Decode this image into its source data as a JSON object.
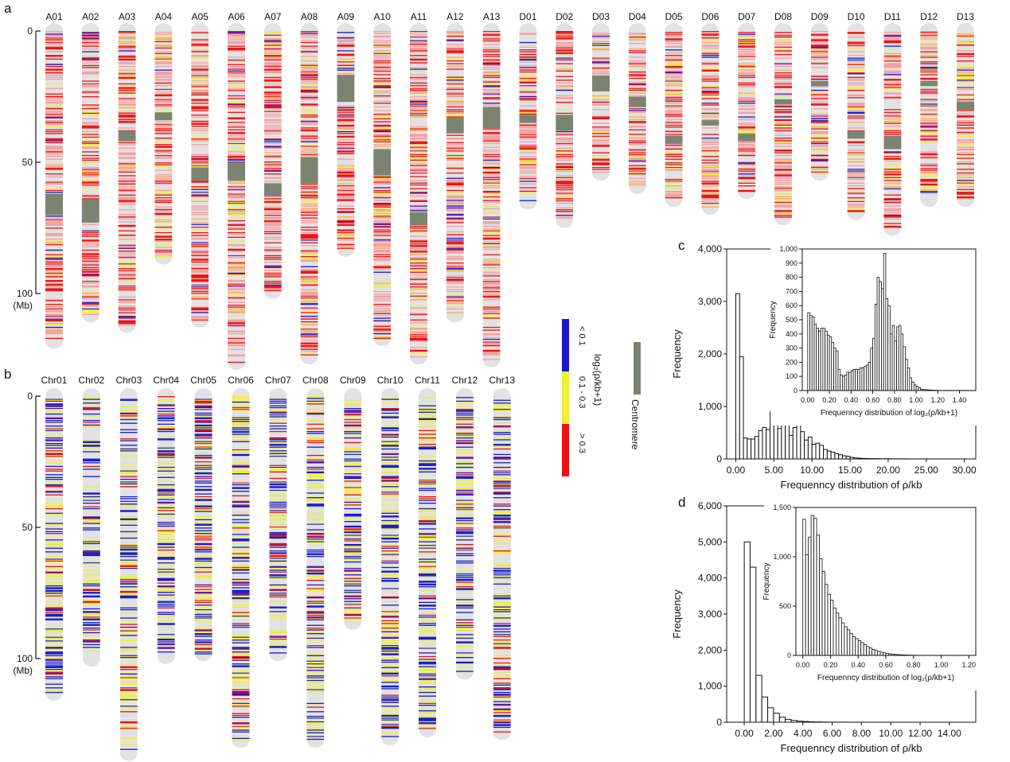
{
  "panel_labels": {
    "a": "a",
    "b": "b",
    "c": "c",
    "d": "d"
  },
  "legend": {
    "title": "log₂(ρ/kb+1)",
    "bins": [
      {
        "label": "< 0.1",
        "color": "#1a1acc"
      },
      {
        "label": "0.1 - 0.3",
        "color": "#eeee3c"
      },
      {
        "label": "> 0.3",
        "color": "#ee1111"
      }
    ],
    "centromere": {
      "label": "Centromere",
      "color": "#7b8470"
    }
  },
  "colors": {
    "chromosome_bg": "#e2e2e2",
    "light_red": "#f4a0a0"
  },
  "chart_data": [
    {
      "id": "panel-a",
      "type": "heatmap",
      "title": "",
      "yaxis": {
        "ticks": [
          0,
          50,
          100
        ],
        "unit_label": "(Mb)"
      },
      "chromosomes": [
        {
          "name": "A01",
          "length": 118,
          "centromere": [
            62,
            70
          ]
        },
        {
          "name": "A02",
          "length": 108,
          "centromere": [
            64,
            73
          ]
        },
        {
          "name": "A03",
          "length": 112,
          "centromere": [
            38,
            42
          ]
        },
        {
          "name": "A04",
          "length": 86,
          "centromere": [
            31,
            34
          ]
        },
        {
          "name": "A05",
          "length": 110,
          "centromere": [
            52,
            57
          ]
        },
        {
          "name": "A06",
          "length": 126,
          "centromere": [
            50,
            57
          ]
        },
        {
          "name": "A07",
          "length": 99,
          "centromere": [
            58,
            63
          ]
        },
        {
          "name": "A08",
          "length": 124,
          "centromere": [
            48,
            58
          ]
        },
        {
          "name": "A09",
          "length": 83,
          "centromere": [
            17,
            27
          ]
        },
        {
          "name": "A10",
          "length": 117,
          "centromere": [
            45,
            55
          ]
        },
        {
          "name": "A11",
          "length": 124,
          "centromere": [
            69,
            74
          ]
        },
        {
          "name": "A12",
          "length": 108,
          "centromere": [
            33,
            39
          ]
        },
        {
          "name": "A13",
          "length": 125,
          "centromere": [
            29,
            37
          ]
        },
        {
          "name": "D01",
          "length": 65,
          "centromere": [
            32,
            35
          ]
        },
        {
          "name": "D02",
          "length": 72,
          "centromere": [
            32,
            38
          ]
        },
        {
          "name": "D03",
          "length": 54,
          "centromere": [
            17,
            23
          ]
        },
        {
          "name": "D04",
          "length": 59,
          "centromere": [
            25,
            29
          ]
        },
        {
          "name": "D05",
          "length": 64,
          "centromere": [
            40,
            43
          ]
        },
        {
          "name": "D06",
          "length": 67,
          "centromere": [
            34,
            36
          ]
        },
        {
          "name": "D07",
          "length": 61,
          "centromere": [
            39,
            42
          ]
        },
        {
          "name": "D08",
          "length": 71,
          "centromere": [
            26,
            28
          ]
        },
        {
          "name": "D09",
          "length": 54,
          "centromere": [
            19,
            21
          ]
        },
        {
          "name": "D10",
          "length": 69,
          "centromere": [
            38,
            41
          ]
        },
        {
          "name": "D11",
          "length": 75,
          "centromere": [
            40,
            45
          ]
        },
        {
          "name": "D12",
          "length": 64,
          "centromere": [
            19,
            21
          ]
        },
        {
          "name": "D13",
          "length": 64,
          "centromere": [
            27,
            30
          ]
        }
      ]
    },
    {
      "id": "panel-b",
      "type": "heatmap",
      "title": "",
      "yaxis": {
        "ticks": [
          0,
          50,
          100
        ],
        "unit_label": "(Mb)"
      },
      "chromosomes": [
        {
          "name": "Chr01",
          "length": 113
        },
        {
          "name": "Chr02",
          "length": 100
        },
        {
          "name": "Chr03",
          "length": 136
        },
        {
          "name": "Chr04",
          "length": 99
        },
        {
          "name": "Chr05",
          "length": 98
        },
        {
          "name": "Chr06",
          "length": 131
        },
        {
          "name": "Chr07",
          "length": 98
        },
        {
          "name": "Chr08",
          "length": 131
        },
        {
          "name": "Chr09",
          "length": 86
        },
        {
          "name": "Chr10",
          "length": 130
        },
        {
          "name": "Chr11",
          "length": 127
        },
        {
          "name": "Chr12",
          "length": 105
        },
        {
          "name": "Chr13",
          "length": 128
        }
      ]
    },
    {
      "id": "panel-c",
      "type": "bar",
      "title": "",
      "xlabel": "Frequenncy distribution of ρ/kb",
      "ylabel": "Frequency",
      "xlim": [
        -1.2,
        31.5
      ],
      "ylim": [
        0,
        4000
      ],
      "xticks": [
        0,
        5,
        10,
        15,
        20,
        25,
        30
      ],
      "xtick_labels": [
        "0.00",
        "5.00",
        "10.00",
        "15.00",
        "20.00",
        "25.00",
        "30.00"
      ],
      "yticks": [
        0,
        1000,
        2000,
        3000,
        4000
      ],
      "ytick_labels": [
        "0",
        "1,000",
        "2,000",
        "3,000",
        "4,000"
      ],
      "bin_start": 0,
      "bin_width": 0.5,
      "values": [
        3150,
        1950,
        400,
        380,
        380,
        430,
        540,
        600,
        560,
        900,
        760,
        580,
        730,
        720,
        450,
        600,
        680,
        520,
        360,
        420,
        280,
        300,
        260,
        180,
        150,
        130,
        100,
        80,
        60,
        50,
        30,
        20,
        15,
        10,
        8,
        6,
        5,
        4,
        3,
        3,
        3,
        2,
        2,
        2,
        2,
        1,
        1,
        1,
        1,
        1,
        1,
        1,
        1,
        1,
        1,
        1,
        1,
        1,
        1,
        1
      ],
      "inset": {
        "xlabel": "Frequenncy distribution of log₂(ρ/kb+1)",
        "ylabel": "Frequency",
        "xlim": [
          -0.05,
          1.55
        ],
        "ylim": [
          0,
          1000
        ],
        "xticks": [
          0,
          0.2,
          0.4,
          0.6,
          0.8,
          1.0,
          1.2,
          1.4
        ],
        "xtick_labels": [
          "0.00",
          "0.20",
          "0.40",
          "0.60",
          "0.80",
          "1.00",
          "1.20",
          "1.40"
        ],
        "yticks": [
          0,
          100,
          200,
          300,
          400,
          500,
          600,
          700,
          800,
          900,
          1000
        ],
        "ytick_labels": [
          "0",
          "100",
          "200",
          "300",
          "400",
          "500",
          "600",
          "700",
          "800",
          "900",
          "1,000"
        ],
        "bin_start": 0,
        "bin_width": 0.02,
        "values": [
          550,
          530,
          520,
          470,
          440,
          420,
          440,
          440,
          420,
          390,
          380,
          340,
          300,
          280,
          150,
          110,
          100,
          110,
          130,
          130,
          140,
          150,
          150,
          150,
          160,
          160,
          170,
          180,
          200,
          300,
          370,
          610,
          800,
          770,
          720,
          970,
          650,
          600,
          400,
          460,
          350,
          450,
          460,
          400,
          310,
          220,
          160,
          90,
          60,
          40,
          30,
          20,
          10,
          8,
          6,
          5,
          4,
          3,
          2,
          2,
          1,
          1,
          1,
          1,
          1,
          1,
          1,
          1,
          1,
          1,
          1,
          1,
          1,
          1,
          1
        ]
      }
    },
    {
      "id": "panel-d",
      "type": "bar",
      "title": "",
      "xlabel": "Frequenncy distribution of ρ/kb",
      "ylabel": "Frequency",
      "xlim": [
        -1.2,
        15.8
      ],
      "ylim": [
        0,
        6000
      ],
      "xticks": [
        0,
        2,
        4,
        6,
        8,
        10,
        12,
        14
      ],
      "xtick_labels": [
        "0.00",
        "2.00",
        "4.00",
        "6.00",
        "8.00",
        "10.00",
        "12.00",
        "14.00"
      ],
      "yticks": [
        0,
        1000,
        2000,
        3000,
        4000,
        5000,
        6000
      ],
      "ytick_labels": [
        "0",
        "1,000",
        "2,000",
        "3,000",
        "4,000",
        "5,000",
        "6,000"
      ],
      "bin_start": 0,
      "bin_width": 0.4,
      "values": [
        5000,
        4300,
        1300,
        700,
        400,
        250,
        140,
        80,
        50,
        30,
        20,
        12,
        8,
        5,
        3,
        2,
        2,
        1,
        1,
        1
      ],
      "inset": {
        "xlabel": "Frequenncy distribution of log₂(ρ/kb+1)",
        "ylabel": "Frequency",
        "xlim": [
          -0.05,
          1.25
        ],
        "ylim": [
          0,
          1500
        ],
        "xticks": [
          0,
          0.2,
          0.4,
          0.6,
          0.8,
          1.0,
          1.2
        ],
        "xtick_labels": [
          "0.00",
          "0.20",
          "0.40",
          "0.60",
          "0.80",
          "1.00",
          "1.20"
        ],
        "yticks": [
          0,
          500,
          1000,
          1500
        ],
        "ytick_labels": [
          "0",
          "500",
          "1,000",
          "1,500"
        ],
        "bin_start": 0,
        "bin_width": 0.02,
        "values": [
          1380,
          1020,
          1200,
          1420,
          1390,
          1220,
          980,
          850,
          720,
          620,
          560,
          480,
          430,
          380,
          330,
          290,
          260,
          220,
          190,
          170,
          150,
          130,
          110,
          90,
          75,
          60,
          50,
          40,
          33,
          26,
          20,
          15,
          12,
          10,
          8,
          6,
          5,
          4,
          3,
          2,
          2,
          1,
          1,
          1,
          1,
          1,
          1,
          1,
          1,
          1,
          1,
          1,
          1,
          1,
          1,
          1,
          1,
          1,
          1,
          1
        ]
      }
    }
  ]
}
